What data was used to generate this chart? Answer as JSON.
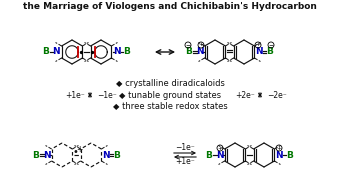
{
  "title": "the Marriage of Viologens and Chichibabin's Hydrocarbon",
  "title_fontsize": 6.5,
  "bullet": "◆",
  "label1": "crystalline diradicaloids",
  "label2": "tunable ground states",
  "label3": "three stable redox states",
  "plus1e": "+1e⁻",
  "minus1e": "−1e⁻",
  "plus2e": "+2e⁻",
  "minus2e": "−2e⁻",
  "B_color": "#007700",
  "N_color": "#0000bb",
  "red_color": "#cc0000",
  "black": "#111111",
  "bg_color": "#ffffff"
}
